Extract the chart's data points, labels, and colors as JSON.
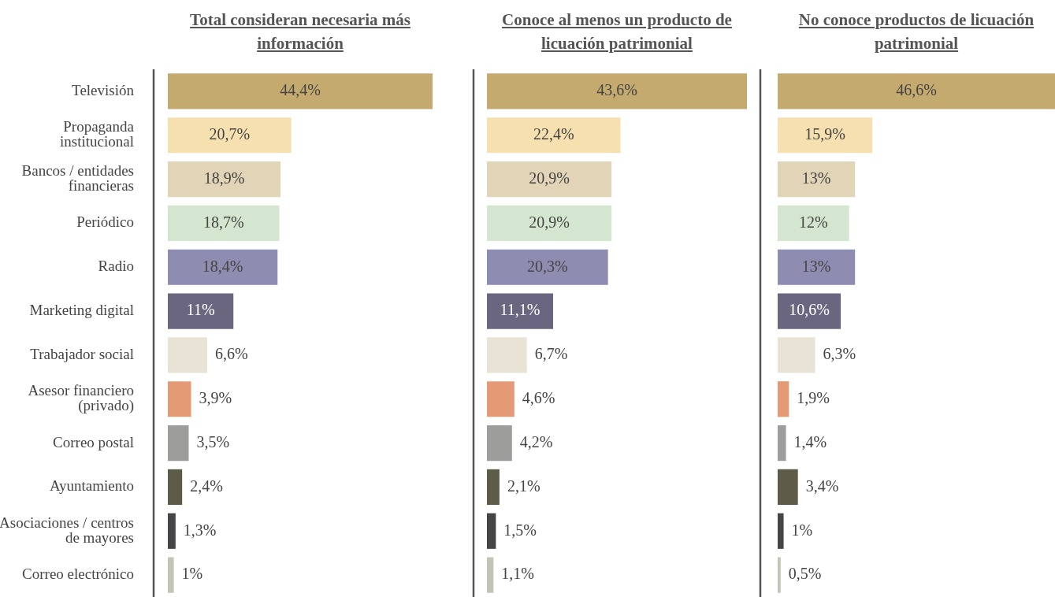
{
  "chart_data": [
    {
      "type": "bar",
      "orientation": "horizontal",
      "title": "Total consideran necesaria más información",
      "tick_labels": "y",
      "categories": [
        "Televisión",
        "Propaganda institucional",
        "Bancos / entidades financieras",
        "Periódico",
        "Radio",
        "Marketing digital",
        "Trabajador social",
        "Asesor financiero (privado)",
        "Correo postal",
        "Ayuntamiento",
        "Asociaciones / centros de mayores",
        "Correo electrónico"
      ],
      "values": [
        44.4,
        20.7,
        18.9,
        18.7,
        18.4,
        11,
        6.6,
        3.9,
        3.5,
        2.4,
        1.3,
        1
      ],
      "value_labels": [
        "44,4%",
        "20,7%",
        "18,9%",
        "18,7%",
        "18,4%",
        "11%",
        "6,6%",
        "3,9%",
        "3,5%",
        "2,4%",
        "1,3%",
        "1%"
      ],
      "colors": [
        "#c4aa6e",
        "#f7e0b0",
        "#e2d4b6",
        "#d4e6d0",
        "#8e8cb0",
        "#6b6680",
        "#e9e3d5",
        "#e49a74",
        "#9d9d9b",
        "#5d5c48",
        "#454547",
        "#c3c4b4"
      ]
    },
    {
      "type": "bar",
      "orientation": "horizontal",
      "title": "Conoce al menos un producto de licuación patrimonial",
      "tick_labels": false,
      "categories": [
        null,
        null,
        null,
        null,
        null,
        null,
        null,
        null,
        null,
        null,
        null,
        null
      ],
      "values": [
        43.6,
        22.4,
        20.9,
        20.9,
        20.3,
        11.1,
        6.7,
        4.6,
        4.2,
        2.1,
        1.5,
        1.1
      ],
      "value_labels": [
        "43,6%",
        "22,4%",
        "20,9%",
        "20,9%",
        "20,3%",
        "11,1%",
        "6,7%",
        "4,6%",
        "4,2%",
        "2,1%",
        "1,5%",
        "1,1%"
      ],
      "colors": [
        "#c4aa6e",
        "#f7e0b0",
        "#e2d4b6",
        "#d4e6d0",
        "#8e8cb0",
        "#6b6680",
        "#e9e3d5",
        "#e49a74",
        "#9d9d9b",
        "#5d5c48",
        "#454547",
        "#c3c4b4"
      ]
    },
    {
      "type": "bar",
      "orientation": "horizontal",
      "title": "No conoce productos de licuación patrimonial",
      "tick_labels": false,
      "categories": [
        null,
        null,
        null,
        null,
        null,
        null,
        null,
        null,
        null,
        null,
        null,
        null
      ],
      "values": [
        46.6,
        15.9,
        13,
        12,
        13,
        10.6,
        6.3,
        1.9,
        1.4,
        3.4,
        1,
        0.5
      ],
      "value_labels": [
        "46,6%",
        "15,9%",
        "13%",
        "12%",
        "13%",
        "10,6%",
        "6,3%",
        "1,9%",
        "1,4%",
        "3,4%",
        "1%",
        "0,5%"
      ],
      "colors": [
        "#c4aa6e",
        "#f7e0b0",
        "#e2d4b6",
        "#d4e6d0",
        "#8e8cb0",
        "#6b6680",
        "#e9e3d5",
        "#e49a74",
        "#9d9d9b",
        "#5d5c48",
        "#454547",
        "#c3c4b4"
      ]
    }
  ]
}
